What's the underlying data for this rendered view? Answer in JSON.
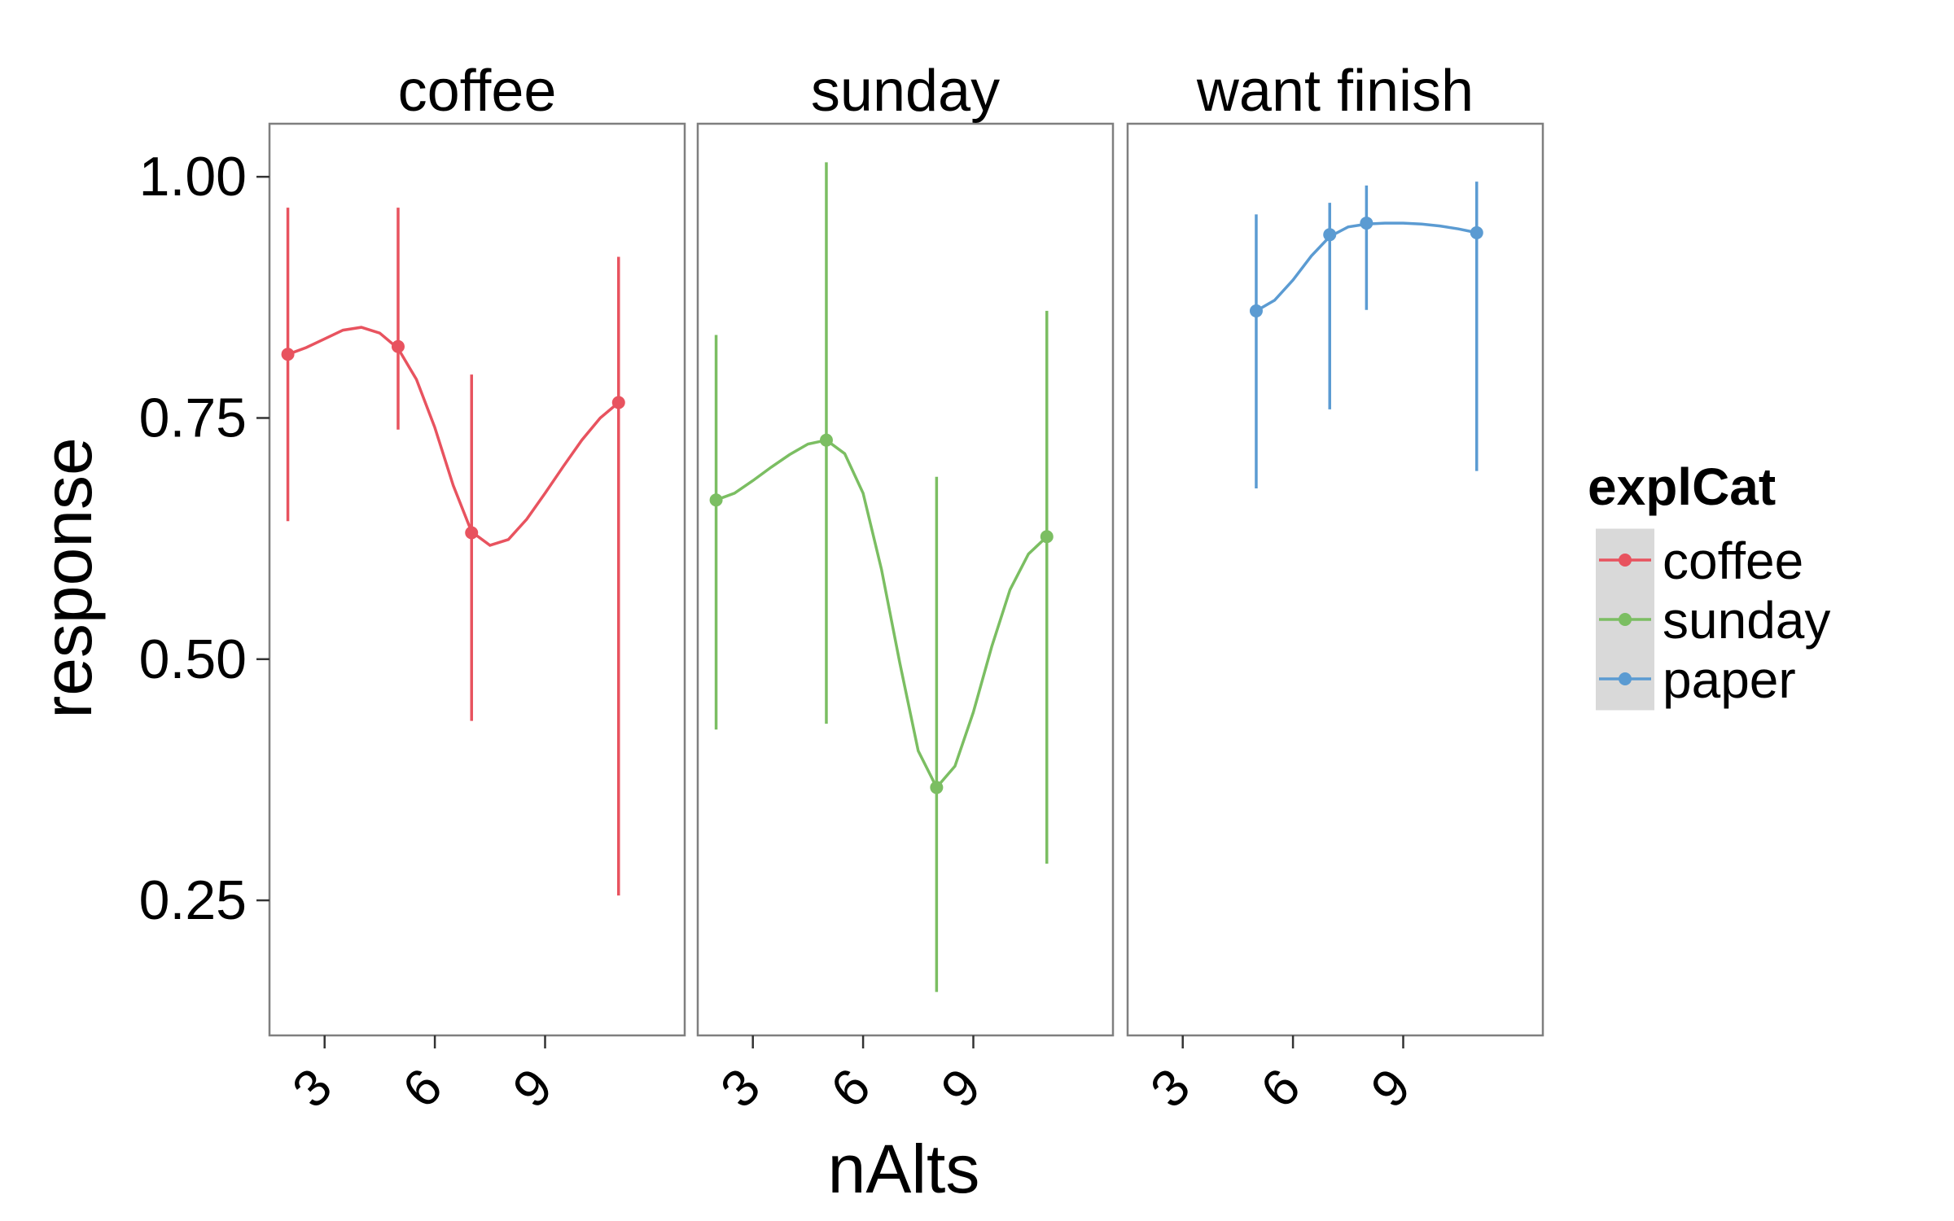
{
  "chart_data": {
    "type": "line",
    "layout": "faceted",
    "xlabel": "nAlts",
    "ylabel": "response",
    "xlim": [
      1.5,
      12.8
    ],
    "ylim": [
      0.11,
      1.055
    ],
    "x_ticks": [
      3,
      6,
      9
    ],
    "y_ticks": [
      0.25,
      0.5,
      0.75,
      1.0
    ],
    "y_tick_labels": [
      "0.25",
      "0.50",
      "0.75",
      "1.00"
    ],
    "x_tick_labels": [
      "3",
      "6",
      "9"
    ],
    "grid": false,
    "legend": {
      "title": "explCat",
      "position": "right",
      "entries": [
        {
          "label": "coffee",
          "color": "#E8535F"
        },
        {
          "label": "sunday",
          "color": "#7BBE62"
        },
        {
          "label": "paper",
          "color": "#5B9BD2"
        }
      ]
    },
    "facets": [
      {
        "title": "coffee",
        "series": "coffee",
        "color": "#E8535F",
        "points": [
          {
            "x": 2,
            "y": 0.816,
            "ymin": 0.643,
            "ymax": 0.968
          },
          {
            "x": 5,
            "y": 0.824,
            "ymin": 0.738,
            "ymax": 0.968
          },
          {
            "x": 7,
            "y": 0.631,
            "ymin": 0.436,
            "ymax": 0.795
          },
          {
            "x": 11,
            "y": 0.766,
            "ymin": 0.255,
            "ymax": 0.917
          }
        ],
        "smooth": [
          [
            2,
            0.816
          ],
          [
            2.5,
            0.823
          ],
          [
            3,
            0.832
          ],
          [
            3.5,
            0.841
          ],
          [
            4,
            0.844
          ],
          [
            4.5,
            0.838
          ],
          [
            5,
            0.822
          ],
          [
            5.5,
            0.79
          ],
          [
            6,
            0.74
          ],
          [
            6.5,
            0.68
          ],
          [
            7,
            0.632
          ],
          [
            7.5,
            0.618
          ],
          [
            8,
            0.624
          ],
          [
            8.5,
            0.645
          ],
          [
            9,
            0.672
          ],
          [
            9.5,
            0.7
          ],
          [
            10,
            0.727
          ],
          [
            10.5,
            0.75
          ],
          [
            11,
            0.766
          ]
        ]
      },
      {
        "title": "sunday",
        "series": "sunday",
        "color": "#7BBE62",
        "points": [
          {
            "x": 2,
            "y": 0.665,
            "ymin": 0.427,
            "ymax": 0.836
          },
          {
            "x": 5,
            "y": 0.727,
            "ymin": 0.433,
            "ymax": 1.015
          },
          {
            "x": 8,
            "y": 0.367,
            "ymin": 0.155,
            "ymax": 0.689
          },
          {
            "x": 11,
            "y": 0.627,
            "ymin": 0.288,
            "ymax": 0.861
          }
        ],
        "smooth": [
          [
            2,
            0.665
          ],
          [
            2.5,
            0.672
          ],
          [
            3,
            0.685
          ],
          [
            3.5,
            0.699
          ],
          [
            4,
            0.712
          ],
          [
            4.5,
            0.723
          ],
          [
            5,
            0.727
          ],
          [
            5.5,
            0.713
          ],
          [
            6,
            0.672
          ],
          [
            6.5,
            0.593
          ],
          [
            7,
            0.496
          ],
          [
            7.5,
            0.405
          ],
          [
            8,
            0.367
          ],
          [
            8.5,
            0.389
          ],
          [
            9,
            0.445
          ],
          [
            9.5,
            0.513
          ],
          [
            10,
            0.572
          ],
          [
            10.5,
            0.609
          ],
          [
            11,
            0.627
          ]
        ]
      },
      {
        "title": "want finish",
        "series": "paper",
        "color": "#5B9BD2",
        "points": [
          {
            "x": 5,
            "y": 0.861,
            "ymin": 0.677,
            "ymax": 0.961
          },
          {
            "x": 7,
            "y": 0.94,
            "ymin": 0.759,
            "ymax": 0.973
          },
          {
            "x": 8,
            "y": 0.952,
            "ymin": 0.862,
            "ymax": 0.991
          },
          {
            "x": 11,
            "y": 0.942,
            "ymin": 0.695,
            "ymax": 0.995
          }
        ],
        "smooth": [
          [
            5,
            0.861
          ],
          [
            5.5,
            0.872
          ],
          [
            6,
            0.893
          ],
          [
            6.5,
            0.918
          ],
          [
            7,
            0.938
          ],
          [
            7.5,
            0.948
          ],
          [
            8,
            0.951
          ],
          [
            8.5,
            0.952
          ],
          [
            9,
            0.952
          ],
          [
            9.5,
            0.951
          ],
          [
            10,
            0.949
          ],
          [
            10.5,
            0.946
          ],
          [
            11,
            0.942
          ]
        ]
      }
    ]
  }
}
